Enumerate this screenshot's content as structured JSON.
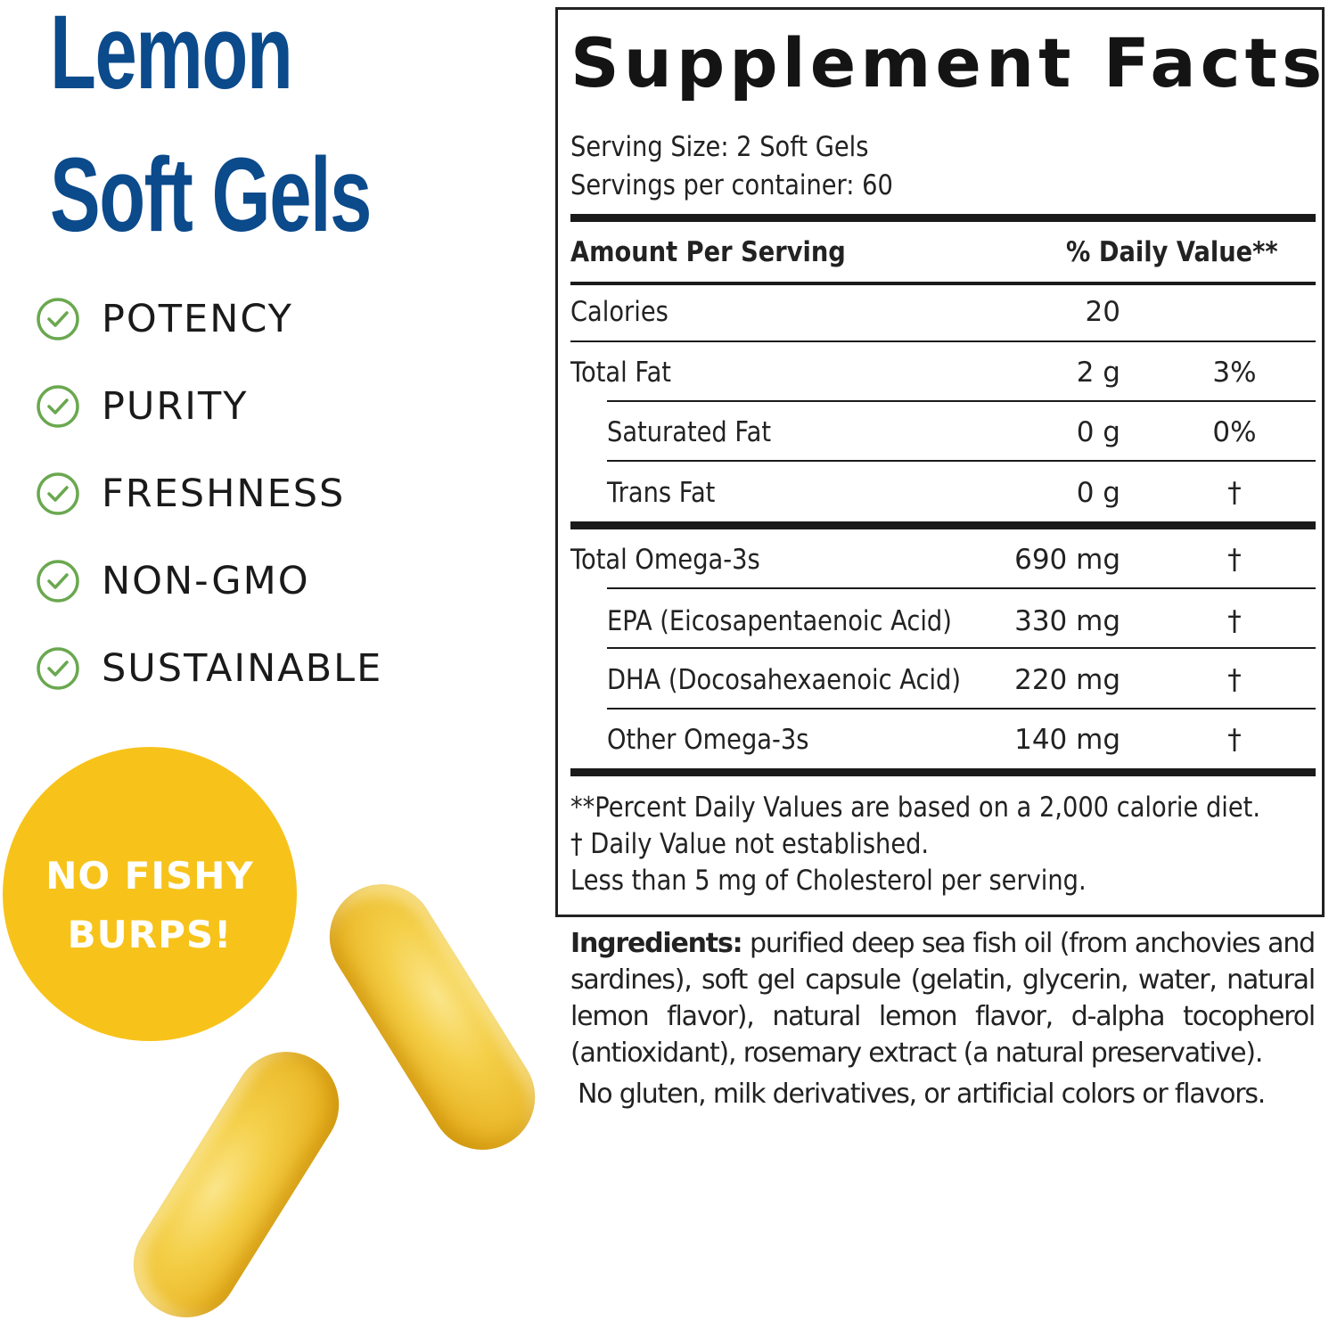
{
  "left": {
    "title_lines": [
      "Lemon",
      "Soft Gels"
    ],
    "brand_color": "#0b4a8b",
    "features": [
      {
        "label": "POTENCY",
        "icon": "check-circle-icon"
      },
      {
        "label": "PURITY",
        "icon": "check-circle-icon"
      },
      {
        "label": "FRESHNESS",
        "icon": "check-circle-icon"
      },
      {
        "label": "NON-GMO",
        "icon": "check-circle-icon"
      },
      {
        "label": "SUSTAINABLE",
        "icon": "check-circle-icon"
      }
    ],
    "check_color": "#6aa84f",
    "badge": {
      "lines": [
        "NO FISHY",
        "BURPS!"
      ],
      "color": "#f7c31b"
    }
  },
  "facts": {
    "title": "Supplement Facts",
    "serving_size": "Serving Size: 2 Soft Gels",
    "servings_per_container": "Servings per container: 60",
    "header_amount": "Amount Per Serving",
    "header_dv": "% Daily Value**",
    "rows": [
      {
        "name": "Calories",
        "amount": "20",
        "dv": "",
        "indent": false
      },
      {
        "name": "Total Fat",
        "amount": "2 g",
        "dv": "3%",
        "indent": false
      },
      {
        "name": "Saturated Fat",
        "amount": "0 g",
        "dv": "0%",
        "indent": true
      },
      {
        "name": "Trans Fat",
        "amount": "0 g",
        "dv": "†",
        "indent": true
      },
      {
        "name": "Total Omega-3s",
        "amount": "690 mg",
        "dv": "†",
        "indent": false
      },
      {
        "name": "EPA (Eicosapentaenoic Acid)",
        "amount": "330 mg",
        "dv": "†",
        "indent": true
      },
      {
        "name": "DHA (Docosahexaenoic Acid)",
        "amount": "220 mg",
        "dv": "†",
        "indent": true
      },
      {
        "name": "Other Omega-3s",
        "amount": "140 mg",
        "dv": "†",
        "indent": true
      }
    ],
    "footnotes": [
      "**Percent Daily Values are based on a 2,000 calorie diet.",
      "†  Daily Value not established.",
      "Less than 5 mg of Cholesterol per serving."
    ]
  },
  "ingredients": {
    "label": "Ingredients:",
    "text": " purified deep sea fish oil (from anchovies and sardines), soft gel capsule (gelatin, glycerin, water, natural lemon flavor), natural lemon flavor, d-alpha tocopherol (antioxidant), rosemary extract (a natural preservative).",
    "note": "No gluten, milk derivatives, or artificial colors or flavors."
  }
}
